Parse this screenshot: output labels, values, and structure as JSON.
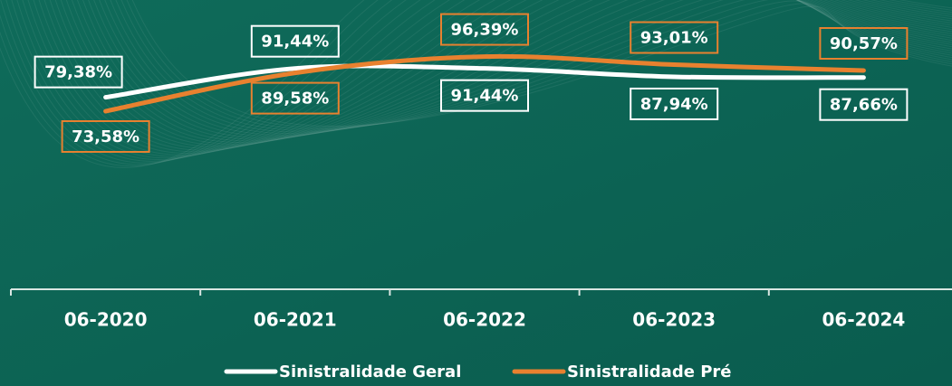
{
  "chart_data": {
    "type": "line",
    "categories": [
      "06-2020",
      "06-2021",
      "06-2022",
      "06-2023",
      "06-2024"
    ],
    "series": [
      {
        "name": "Sinistralidade Geral",
        "color": "#ffffff",
        "values": [
          79.38,
          91.44,
          91.44,
          87.94,
          87.66
        ],
        "value_labels": [
          "79,38%",
          "91,44%",
          "91,44%",
          "87,94%",
          "87,66%"
        ]
      },
      {
        "name": "Sinistralidade Pré",
        "color": "#e8812f",
        "values": [
          73.58,
          89.58,
          96.39,
          93.01,
          90.57
        ],
        "value_labels": [
          "73,58%",
          "89,58%",
          "96,39%",
          "93,01%",
          "90,57%"
        ]
      }
    ],
    "ylim": [
      0,
      100
    ]
  }
}
